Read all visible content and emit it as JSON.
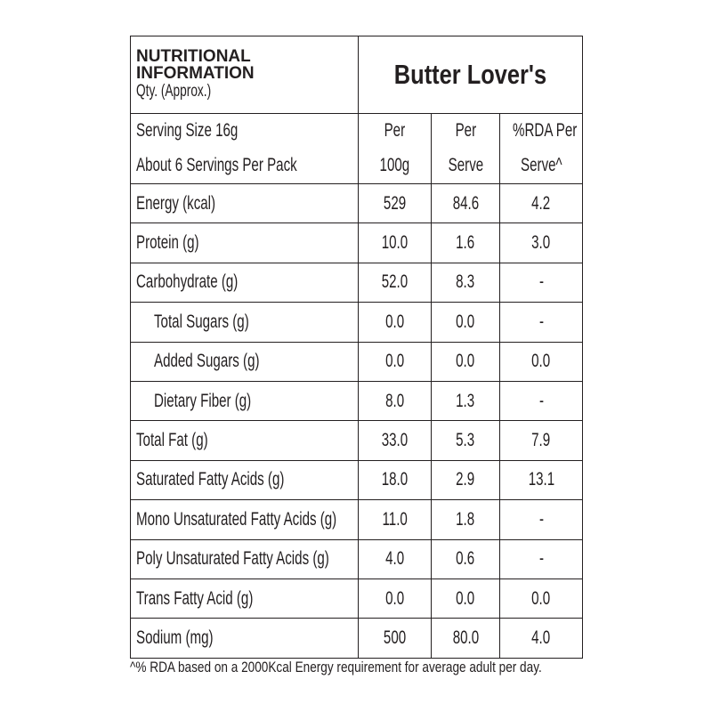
{
  "header": {
    "title": [
      "NUTRITIONAL",
      "INFORMATION"
    ],
    "qty": "Qty. (Approx.)",
    "product": "Butter Lover's"
  },
  "subheader": {
    "serving": [
      "Serving Size 16g",
      "About 6 Servings Per Pack"
    ],
    "columns": [
      [
        "Per",
        "100g"
      ],
      [
        "Per",
        "Serve"
      ],
      [
        "%RDA Per",
        "Serve^"
      ]
    ]
  },
  "rows": [
    [
      "Energy (kcal)",
      "529",
      "84.6",
      "4.2"
    ],
    [
      "Protein (g)",
      "10.0",
      "1.6",
      "3.0"
    ],
    [
      "Carbohydrate (g)",
      "52.0",
      "8.3",
      "-"
    ],
    [
      "Total Sugars (g)",
      "0.0",
      "0.0",
      "-"
    ],
    [
      "Added Sugars (g)",
      "0.0",
      "0.0",
      "0.0"
    ],
    [
      "Dietary Fiber (g)",
      "8.0",
      "1.3",
      "-"
    ],
    [
      "Total Fat (g)",
      "33.0",
      "5.3",
      "7.9"
    ],
    [
      "Saturated Fatty Acids (g)",
      "18.0",
      "2.9",
      "13.1"
    ],
    [
      "Mono Unsaturated Fatty Acids (g)",
      "11.0",
      "1.8",
      "-"
    ],
    [
      "Poly Unsaturated Fatty Acids (g)",
      "4.0",
      "0.6",
      "-"
    ],
    [
      "Trans Fatty Acid (g)",
      "0.0",
      "0.0",
      "0.0"
    ],
    [
      "Sodium (mg)",
      "500",
      "80.0",
      "4.0"
    ]
  ],
  "footnote": "^% RDA based on a 2000Kcal Energy requirement for average adult per day."
}
